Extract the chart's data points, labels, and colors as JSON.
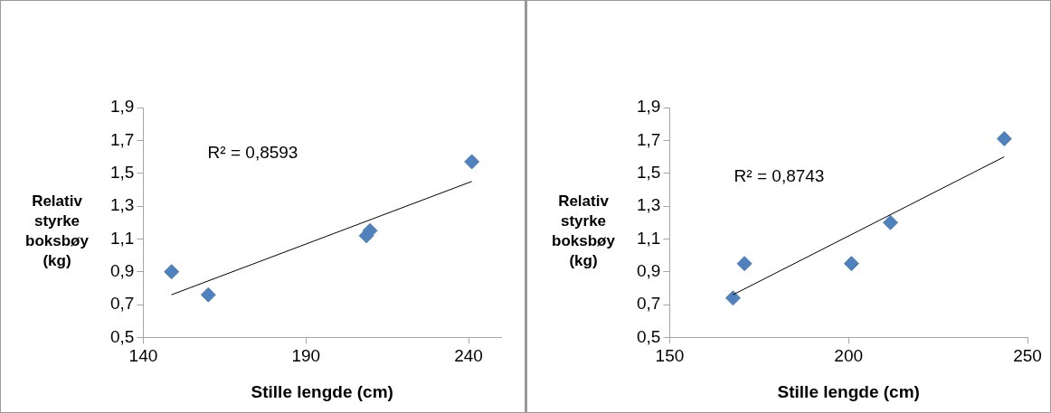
{
  "chart_data": [
    {
      "type": "scatter",
      "xlabel": "Stille lengde (cm)",
      "ylabel": "Relativ styrke boksbøy (kg)",
      "annotations": [
        "R² = 0,8593"
      ],
      "grid": false,
      "legend": false,
      "xlim": [
        140,
        250
      ],
      "xticks": [
        140,
        190,
        240
      ],
      "ylim": [
        0.5,
        1.9
      ],
      "yticks": [
        {
          "value": 0.5,
          "label": "0,5"
        },
        {
          "value": 0.7,
          "label": "0,7"
        },
        {
          "value": 0.9,
          "label": "0,9"
        },
        {
          "value": 1.1,
          "label": "1,1"
        },
        {
          "value": 1.3,
          "label": "1,3"
        },
        {
          "value": 1.5,
          "label": "1,5"
        },
        {
          "value": 1.7,
          "label": "1,7"
        },
        {
          "value": 1.9,
          "label": "1,9"
        }
      ],
      "series": [
        {
          "color": "#4f81bd",
          "marker": "diamond",
          "x": [
            148.7,
            160,
            208.6,
            209.7,
            241
          ],
          "values": [
            0.9,
            0.76,
            1.12,
            1.15,
            1.57
          ]
        },
        {
          "type": "line",
          "color": "#000000",
          "marker": "none",
          "x": [
            148.7,
            241
          ],
          "values": [
            0.76,
            1.45
          ]
        }
      ]
    },
    {
      "type": "scatter",
      "xlabel": "Stille lengde (cm)",
      "ylabel": "Relativ styrke boksbøy (kg)",
      "annotations": [
        "R² = 0,8743"
      ],
      "grid": false,
      "legend": false,
      "xlim": [
        150,
        250
      ],
      "xticks": [
        150,
        200,
        250
      ],
      "ylim": [
        0.5,
        1.9
      ],
      "yticks": [
        {
          "value": 0.5,
          "label": "0,5"
        },
        {
          "value": 0.7,
          "label": "0,7"
        },
        {
          "value": 0.9,
          "label": "0,9"
        },
        {
          "value": 1.1,
          "label": "1,1"
        },
        {
          "value": 1.3,
          "label": "1,3"
        },
        {
          "value": 1.5,
          "label": "1,5"
        },
        {
          "value": 1.7,
          "label": "1,7"
        },
        {
          "value": 1.9,
          "label": "1,9"
        }
      ],
      "series": [
        {
          "color": "#4f81bd",
          "marker": "diamond",
          "x": [
            167.7,
            170.9,
            200.8,
            211.7,
            243.5
          ],
          "values": [
            0.74,
            0.95,
            0.95,
            1.2,
            1.71
          ]
        },
        {
          "type": "line",
          "color": "#000000",
          "marker": "none",
          "x": [
            167.7,
            243.5
          ],
          "values": [
            0.76,
            1.6
          ]
        }
      ]
    }
  ]
}
